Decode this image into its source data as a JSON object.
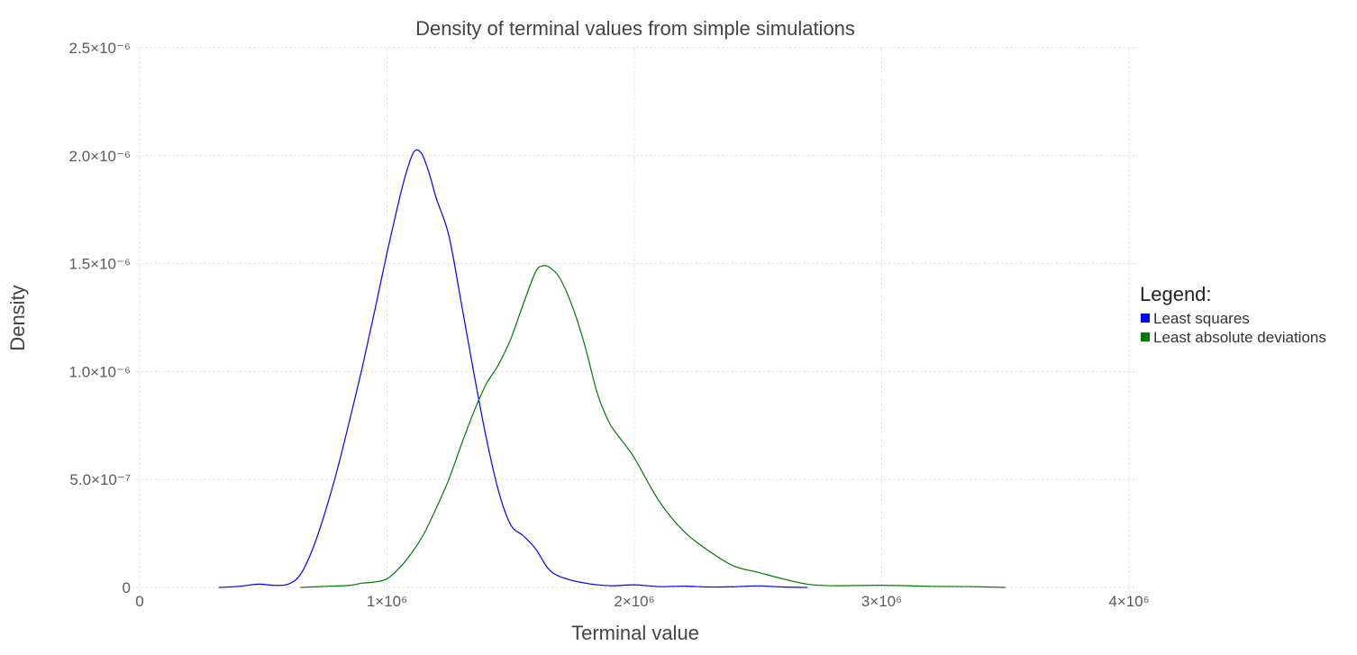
{
  "chart_data": {
    "type": "line",
    "title": "Density of terminal values from simple simulations",
    "xlabel": "Terminal value",
    "ylabel": "Density",
    "xlim": [
      0,
      4000000
    ],
    "ylim": [
      0,
      2.5e-06
    ],
    "grid": true,
    "legend_position": "right",
    "legend_title": "Legend:",
    "x_ticks": [
      {
        "value": 0,
        "label": "0"
      },
      {
        "value": 1000000,
        "label": "1×10⁶"
      },
      {
        "value": 2000000,
        "label": "2×10⁶"
      },
      {
        "value": 3000000,
        "label": "3×10⁶"
      },
      {
        "value": 4000000,
        "label": "4×10⁶"
      }
    ],
    "y_ticks": [
      {
        "value": 0,
        "label": "0"
      },
      {
        "value": 5e-07,
        "label": "5.0×10⁻⁷"
      },
      {
        "value": 1e-06,
        "label": "1.0×10⁻⁶"
      },
      {
        "value": 1.5e-06,
        "label": "1.5×10⁻⁶"
      },
      {
        "value": 2e-06,
        "label": "2.0×10⁻⁶"
      },
      {
        "value": 2.5e-06,
        "label": "2.5×10⁻⁶"
      }
    ],
    "series": [
      {
        "name": "Least squares",
        "color": "#0000ff",
        "x": [
          320000,
          400000,
          480000,
          540000,
          600000,
          650000,
          700000,
          750000,
          800000,
          850000,
          900000,
          950000,
          1000000,
          1050000,
          1080000,
          1110000,
          1140000,
          1170000,
          1200000,
          1250000,
          1300000,
          1350000,
          1400000,
          1450000,
          1500000,
          1550000,
          1600000,
          1650000,
          1700000,
          1800000,
          1900000,
          2000000,
          2100000,
          2200000,
          2300000,
          2400000,
          2500000,
          2600000,
          2700000
        ],
        "y": [
          0,
          5e-09,
          1.5e-08,
          1e-08,
          1.5e-08,
          6e-08,
          1.8e-07,
          3.5e-07,
          5.5e-07,
          7.8e-07,
          1.02e-06,
          1.28e-06,
          1.55e-06,
          1.8e-06,
          1.93e-06,
          2.02e-06,
          2.01e-06,
          1.92e-06,
          1.8e-06,
          1.63e-06,
          1.32e-06,
          1e-06,
          7e-07,
          4.5e-07,
          2.9e-07,
          2.4e-07,
          1.8e-07,
          9e-08,
          5e-08,
          2e-08,
          8e-09,
          1.2e-08,
          4e-09,
          6e-09,
          2e-09,
          3e-09,
          7e-09,
          2e-09,
          0
        ]
      },
      {
        "name": "Least absolute deviations",
        "color": "#007a00",
        "x": [
          650000,
          750000,
          850000,
          900000,
          950000,
          1000000,
          1050000,
          1100000,
          1150000,
          1200000,
          1250000,
          1300000,
          1350000,
          1400000,
          1450000,
          1500000,
          1550000,
          1600000,
          1630000,
          1660000,
          1700000,
          1750000,
          1800000,
          1850000,
          1900000,
          1950000,
          2000000,
          2100000,
          2200000,
          2300000,
          2400000,
          2500000,
          2600000,
          2700000,
          2800000,
          3000000,
          3200000,
          3350000,
          3500000
        ],
        "y": [
          0,
          5e-09,
          1e-08,
          2e-08,
          2.5e-08,
          4e-08,
          9e-08,
          1.6e-07,
          2.5e-07,
          3.7e-07,
          5e-07,
          6.6e-07,
          8.1e-07,
          9.4e-07,
          1.03e-06,
          1.15e-06,
          1.31e-06,
          1.46e-06,
          1.49e-06,
          1.48e-06,
          1.43e-06,
          1.3e-06,
          1.12e-06,
          9e-07,
          7.6e-07,
          6.8e-07,
          6e-07,
          4e-07,
          2.6e-07,
          1.7e-07,
          1e-07,
          7e-08,
          4e-08,
          1.5e-08,
          8e-09,
          1e-08,
          5e-09,
          4e-09,
          0
        ]
      }
    ]
  }
}
